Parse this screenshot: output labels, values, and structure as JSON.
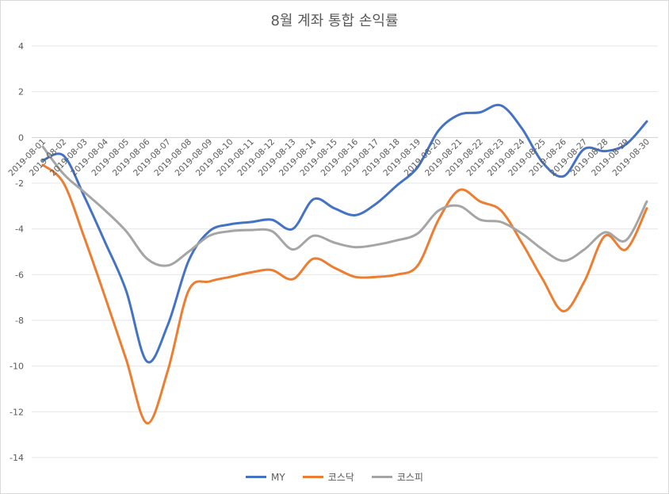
{
  "chart_data": {
    "type": "line",
    "title": "8월 계좌 통합 손익률",
    "xlabel": "",
    "ylabel": "",
    "ylim": [
      -14,
      4
    ],
    "yticks": [
      4,
      2,
      0,
      -2,
      -4,
      -6,
      -8,
      -10,
      -12,
      -14
    ],
    "categories": [
      "2019-08-01",
      "2019-08-02",
      "2019-08-03",
      "2019-08-04",
      "2019-08-05",
      "2019-08-06",
      "2019-08-07",
      "2019-08-08",
      "2019-08-09",
      "2019-08-10",
      "2019-08-11",
      "2019-08-12",
      "2019-08-13",
      "2019-08-14",
      "2019-08-15",
      "2019-08-16",
      "2019-08-17",
      "2019-08-18",
      "2019-08-19",
      "2019-08-20",
      "2019-08-21",
      "2019-08-22",
      "2019-08-23",
      "2019-08-24",
      "2019-08-25",
      "2019-08-26",
      "2019-08-27",
      "2019-08-28",
      "2019-08-29",
      "2019-08-30"
    ],
    "grid": true,
    "legend_position": "bottom",
    "series": [
      {
        "name": "MY",
        "color": "#4472c4",
        "values": [
          -1.0,
          -0.8,
          -2.6,
          -4.6,
          -6.7,
          -9.8,
          -8.2,
          -5.4,
          -4.1,
          -3.8,
          -3.7,
          -3.6,
          -4.0,
          -2.7,
          -3.1,
          -3.4,
          -2.9,
          -2.1,
          -1.3,
          0.3,
          1.0,
          1.1,
          1.4,
          0.4,
          -1.1,
          -1.7,
          -0.5,
          -0.6,
          -0.3,
          0.7
        ]
      },
      {
        "name": "코스닥",
        "color": "#ed7d31",
        "values": [
          -1.2,
          -2.0,
          -4.4,
          -7.0,
          -9.7,
          -12.5,
          -10.2,
          -6.7,
          -6.3,
          -6.1,
          -5.9,
          -5.8,
          -6.2,
          -5.3,
          -5.7,
          -6.1,
          -6.1,
          -6.0,
          -5.6,
          -3.6,
          -2.3,
          -2.8,
          -3.2,
          -4.6,
          -6.2,
          -7.6,
          -6.3,
          -4.3,
          -4.9,
          -3.1
        ]
      },
      {
        "name": "코스피",
        "color": "#a5a5a5",
        "values": [
          -0.4,
          -1.6,
          -2.4,
          -3.2,
          -4.1,
          -5.3,
          -5.6,
          -5.0,
          -4.3,
          -4.1,
          -4.05,
          -4.1,
          -4.9,
          -4.3,
          -4.6,
          -4.8,
          -4.7,
          -4.5,
          -4.2,
          -3.2,
          -3.0,
          -3.6,
          -3.7,
          -4.2,
          -4.9,
          -5.4,
          -4.9,
          -4.15,
          -4.5,
          -2.8
        ]
      }
    ]
  }
}
